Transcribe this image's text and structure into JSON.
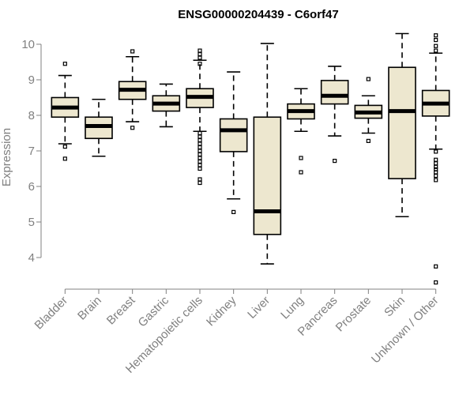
{
  "chart_data": {
    "type": "boxplot",
    "title": "ENSG00000204439 - C6orf47",
    "xlabel": "",
    "ylabel": "Expression",
    "ylim": [
      3.0,
      10.6
    ],
    "yticks": [
      4,
      5,
      6,
      7,
      8,
      9,
      10
    ],
    "grid": false,
    "colors": {
      "box_fill": "#ede7cf",
      "box_stroke": "#000000",
      "axis": "#808080",
      "title": "#000000"
    },
    "categories": [
      "Bladder",
      "Brain",
      "Breast",
      "Gastric",
      "Hematopoietic cells",
      "Kidney",
      "Liver",
      "Lung",
      "Pancreas",
      "Prostate",
      "Skin",
      "Unknown / Other"
    ],
    "boxes": [
      {
        "category": "Bladder",
        "whisker_low": 7.2,
        "q1": 7.95,
        "median": 8.22,
        "q3": 8.5,
        "whisker_high": 9.12,
        "outliers": [
          9.45,
          7.12,
          6.78
        ]
      },
      {
        "category": "Brain",
        "whisker_low": 6.85,
        "q1": 7.35,
        "median": 7.7,
        "q3": 7.95,
        "whisker_high": 8.45,
        "outliers": []
      },
      {
        "category": "Breast",
        "whisker_low": 7.82,
        "q1": 8.45,
        "median": 8.72,
        "q3": 8.95,
        "whisker_high": 9.65,
        "outliers": [
          9.8,
          7.65
        ]
      },
      {
        "category": "Gastric",
        "whisker_low": 7.68,
        "q1": 8.12,
        "median": 8.33,
        "q3": 8.55,
        "whisker_high": 8.88,
        "outliers": []
      },
      {
        "category": "Hematopoietic cells",
        "whisker_low": 7.55,
        "q1": 8.22,
        "median": 8.52,
        "q3": 8.75,
        "whisker_high": 9.55,
        "outliers": [
          9.82,
          9.72,
          9.62,
          9.45,
          7.5,
          7.4,
          7.3,
          7.2,
          7.1,
          7.0,
          6.9,
          6.8,
          6.7,
          6.6,
          6.5,
          6.2,
          6.1
        ]
      },
      {
        "category": "Kidney",
        "whisker_low": 5.65,
        "q1": 6.98,
        "median": 7.58,
        "q3": 7.9,
        "whisker_high": 9.22,
        "outliers": [
          5.28
        ]
      },
      {
        "category": "Liver",
        "whisker_low": 3.82,
        "q1": 4.65,
        "median": 5.3,
        "q3": 7.95,
        "whisker_high": 10.02,
        "outliers": []
      },
      {
        "category": "Lung",
        "whisker_low": 7.55,
        "q1": 7.9,
        "median": 8.12,
        "q3": 8.32,
        "whisker_high": 8.75,
        "outliers": [
          6.8,
          6.4
        ]
      },
      {
        "category": "Pancreas",
        "whisker_low": 7.42,
        "q1": 8.32,
        "median": 8.55,
        "q3": 8.98,
        "whisker_high": 9.38,
        "outliers": [
          6.72
        ]
      },
      {
        "category": "Prostate",
        "whisker_low": 7.5,
        "q1": 7.92,
        "median": 8.08,
        "q3": 8.28,
        "whisker_high": 8.55,
        "outliers": [
          9.02,
          7.28
        ]
      },
      {
        "category": "Skin",
        "whisker_low": 5.15,
        "q1": 6.22,
        "median": 8.12,
        "q3": 9.35,
        "whisker_high": 10.3,
        "outliers": []
      },
      {
        "category": "Unknown / Other",
        "whisker_low": 7.05,
        "q1": 7.98,
        "median": 8.33,
        "q3": 8.7,
        "whisker_high": 9.75,
        "outliers": [
          10.25,
          10.12,
          9.95,
          9.82,
          6.98,
          6.75,
          6.65,
          6.55,
          6.48,
          6.4,
          6.3,
          6.18,
          3.75,
          3.3
        ]
      }
    ]
  }
}
